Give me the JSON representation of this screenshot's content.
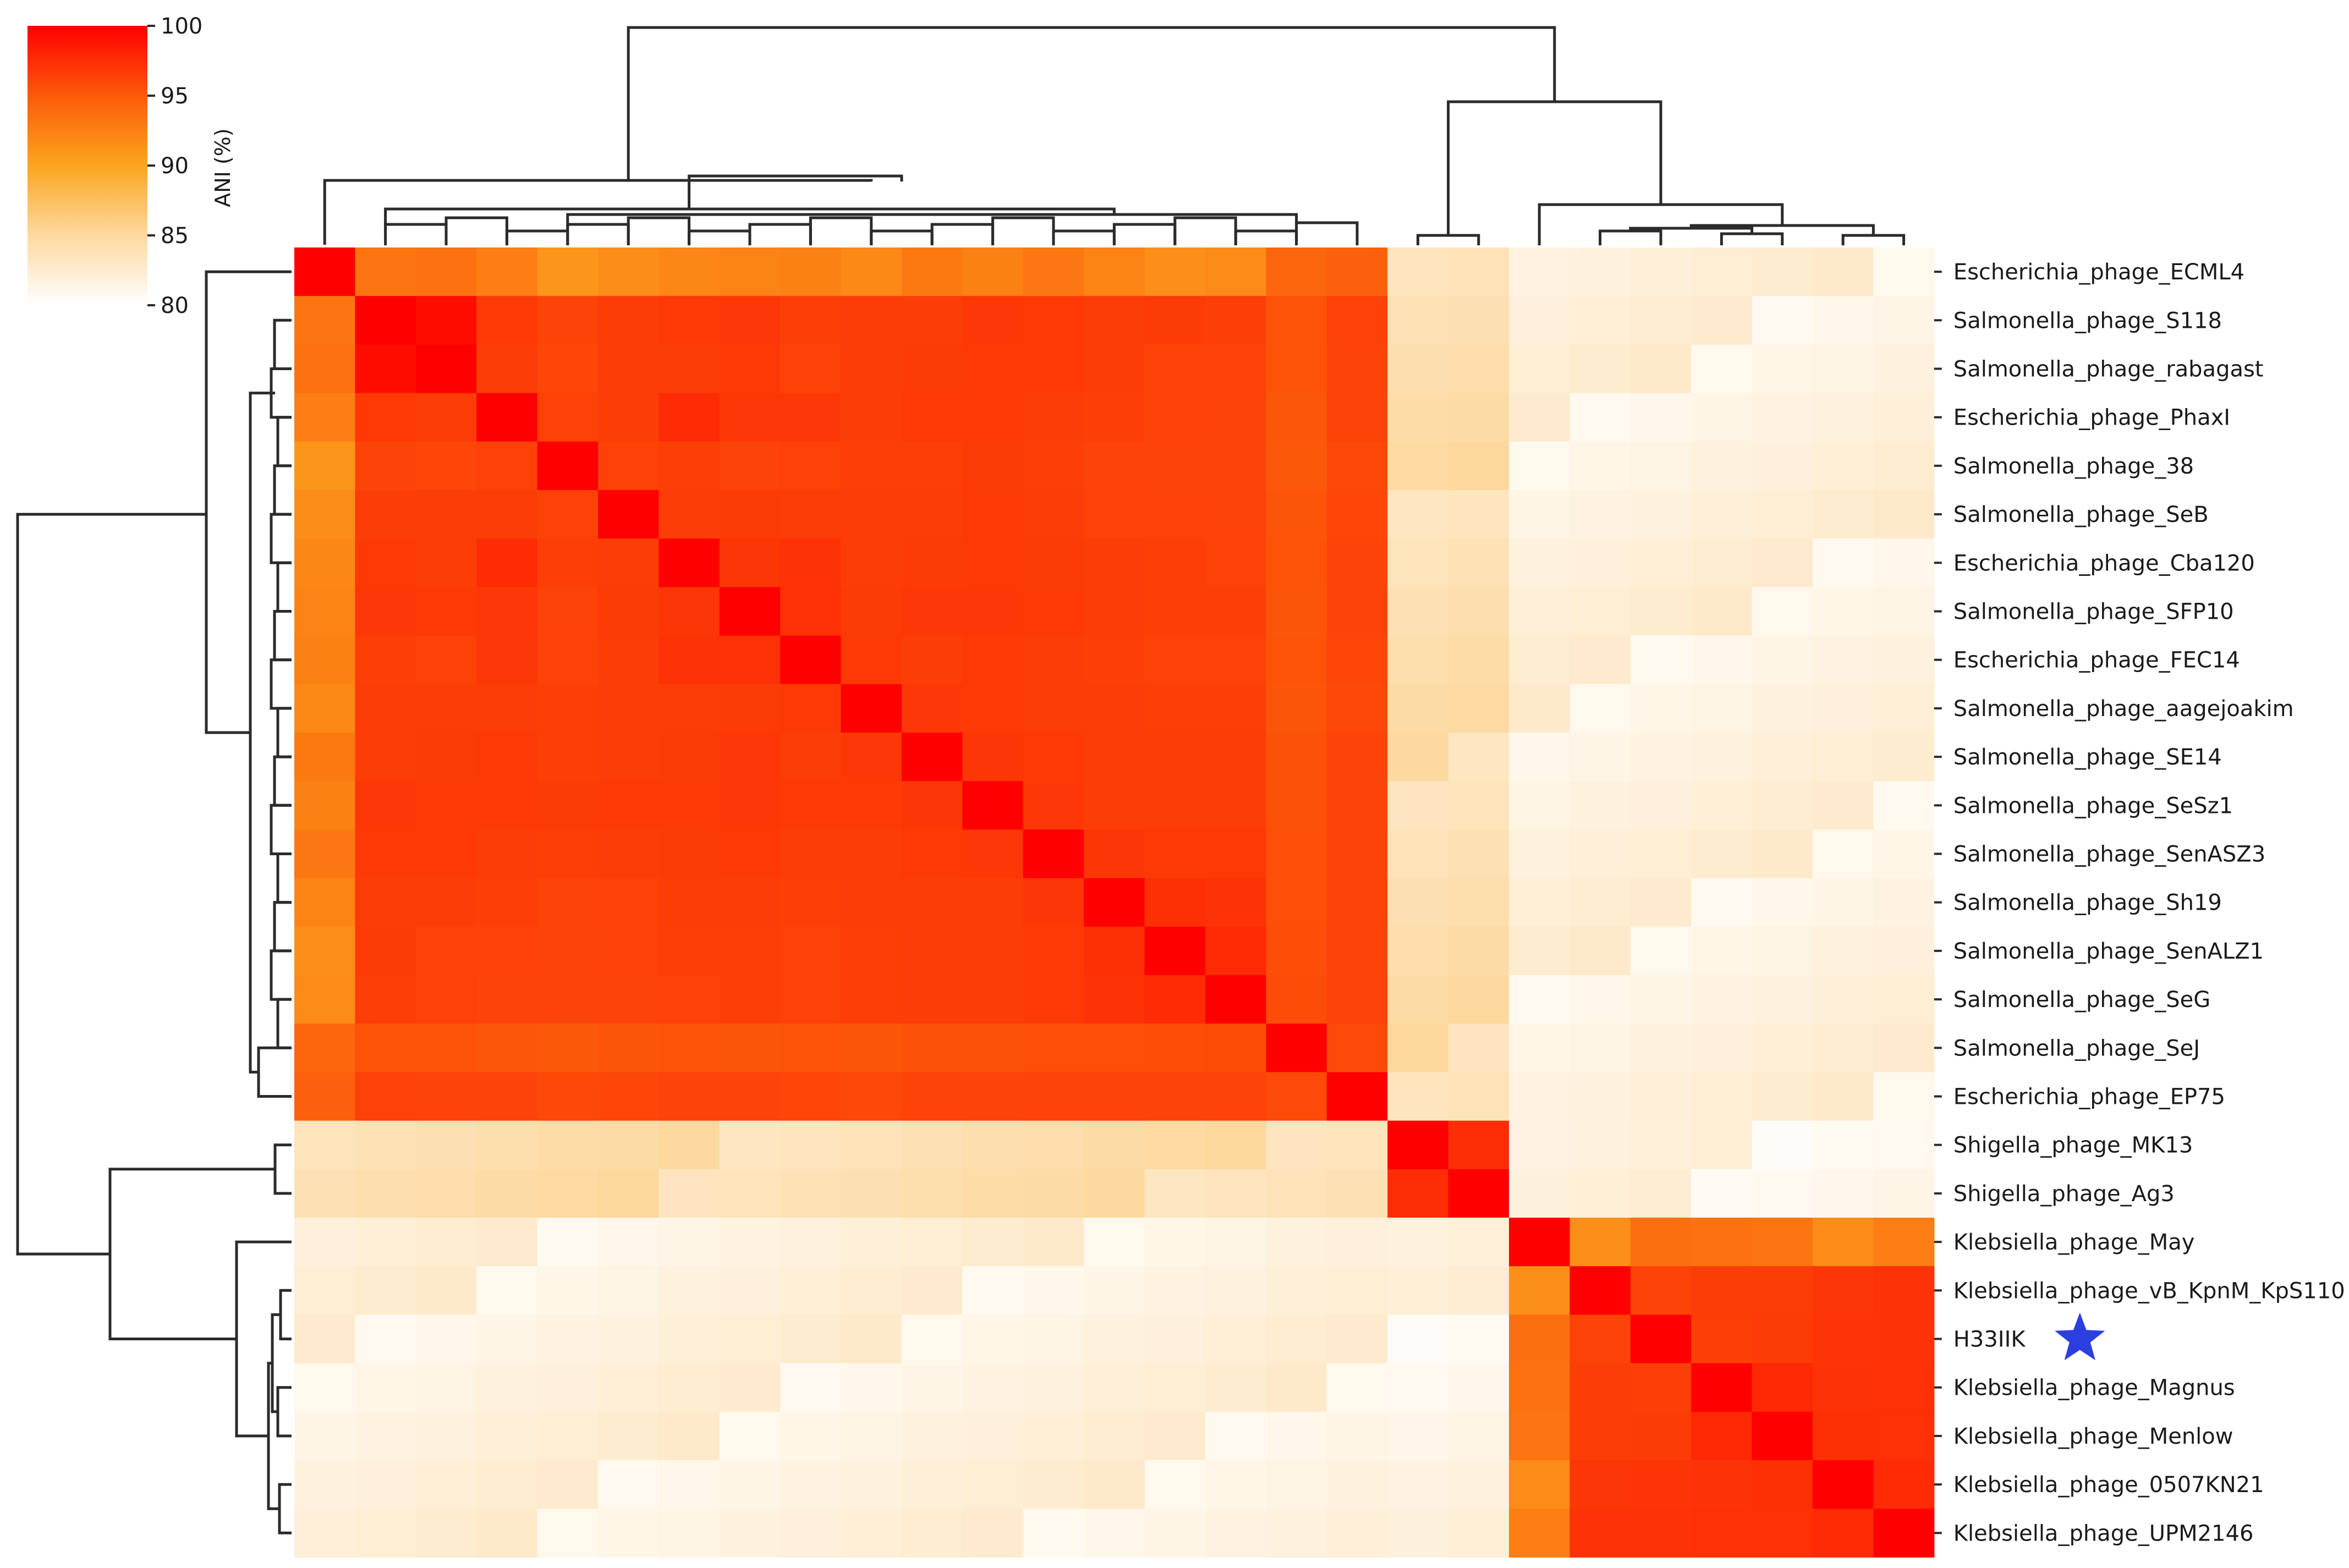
{
  "chart_data": {
    "type": "heatmap",
    "metric": "ANI (%)",
    "colorbar": {
      "label": "ANI (%)",
      "ticks": [
        100,
        95,
        90,
        85,
        80
      ],
      "range": [
        80,
        100
      ],
      "colors": [
        "#ffffff",
        "#fdd9a0",
        "#fca51e",
        "#fc5a0a",
        "#ff0000"
      ]
    },
    "rows": [
      "Escherichia_phage_ECML4",
      "Salmonella_phage_S118",
      "Salmonella_phage_rabagast",
      "Escherichia_phage_PhaxI",
      "Salmonella_phage_38",
      "Salmonella_phage_SeB",
      "Escherichia_phage_Cba120",
      "Salmonella_phage_SFP10",
      "Escherichia_phage_FEC14",
      "Salmonella_phage_aagejoakim",
      "Salmonella_phage_SE14",
      "Salmonella_phage_SeSz1",
      "Salmonella_phage_SenASZ3",
      "Salmonella_phage_Sh19",
      "Salmonella_phage_SenALZ1",
      "Salmonella_phage_SeG",
      "Salmonella_phage_SeJ",
      "Escherichia_phage_EP75",
      "Shigella_phage_MK13",
      "Shigella_phage_Ag3",
      "Klebsiella_phage_May",
      "Klebsiella_phage_vB_KpnM_KpS110",
      "H33IIK",
      "Klebsiella_phage_Magnus",
      "Klebsiella_phage_Menlow",
      "Klebsiella_phage_0507KN21",
      "Klebsiella_phage_UPM2146"
    ],
    "highlight": {
      "row": "H33IIK",
      "marker": "star-icon",
      "color": "#2b3ee0"
    },
    "groups": [
      {
        "start": 0,
        "end": 17
      },
      {
        "start": 18,
        "end": 19
      },
      {
        "start": 20,
        "end": 26
      }
    ],
    "within_group_ani": [
      [
        100,
        93.2,
        93.4,
        92.6,
        91.0,
        91.6,
        92.0,
        92.3,
        92.4,
        91.9,
        92.9,
        92.4,
        93.1,
        92.2,
        91.5,
        91.8,
        94.2,
        94.6
      ],
      [
        93.2,
        100,
        99.3,
        96.8,
        96.2,
        96.6,
        96.8,
        96.9,
        96.5,
        96.6,
        96.6,
        96.9,
        96.8,
        96.6,
        96.7,
        96.5,
        95.4,
        96.4
      ],
      [
        93.4,
        99.3,
        100,
        96.6,
        96.1,
        96.6,
        96.6,
        96.8,
        96.4,
        96.6,
        96.7,
        96.8,
        96.8,
        96.6,
        96.4,
        96.4,
        95.4,
        96.3
      ],
      [
        92.6,
        96.8,
        96.6,
        100,
        96.4,
        96.6,
        97.6,
        96.9,
        96.9,
        96.6,
        96.8,
        96.8,
        96.6,
        96.5,
        96.4,
        96.3,
        95.2,
        96.2
      ],
      [
        91.0,
        96.2,
        96.1,
        96.4,
        100,
        96.4,
        96.5,
        96.3,
        96.4,
        96.5,
        96.5,
        96.7,
        96.5,
        96.3,
        96.2,
        96.2,
        95.1,
        96.0
      ],
      [
        91.6,
        96.6,
        96.6,
        96.6,
        96.4,
        100,
        96.6,
        96.7,
        96.6,
        96.6,
        96.6,
        96.8,
        96.6,
        96.4,
        96.4,
        96.3,
        95.3,
        96.1
      ],
      [
        92.0,
        96.8,
        96.6,
        97.6,
        96.5,
        96.6,
        100,
        97.0,
        97.2,
        96.6,
        96.7,
        96.8,
        96.7,
        96.6,
        96.5,
        96.4,
        95.4,
        96.2
      ],
      [
        92.3,
        96.9,
        96.8,
        96.9,
        96.3,
        96.7,
        97.0,
        100,
        97.3,
        96.7,
        96.9,
        96.9,
        96.8,
        96.6,
        96.5,
        96.5,
        95.3,
        96.2
      ],
      [
        92.4,
        96.5,
        96.4,
        96.9,
        96.4,
        96.6,
        97.2,
        97.3,
        100,
        96.8,
        96.6,
        96.8,
        96.6,
        96.5,
        96.4,
        96.4,
        95.4,
        96.1
      ],
      [
        91.9,
        96.6,
        96.6,
        96.6,
        96.5,
        96.6,
        96.6,
        96.7,
        96.8,
        100,
        96.9,
        96.8,
        96.6,
        96.6,
        96.5,
        96.5,
        95.3,
        96.0
      ],
      [
        92.9,
        96.6,
        96.7,
        96.8,
        96.5,
        96.6,
        96.7,
        96.9,
        96.6,
        96.9,
        100,
        97.0,
        96.8,
        96.6,
        96.6,
        96.6,
        95.5,
        96.3
      ],
      [
        92.4,
        96.9,
        96.8,
        96.8,
        96.7,
        96.8,
        96.8,
        96.9,
        96.8,
        96.8,
        97.0,
        100,
        96.9,
        96.6,
        96.6,
        96.6,
        95.5,
        96.2
      ],
      [
        93.1,
        96.8,
        96.8,
        96.6,
        96.5,
        96.6,
        96.7,
        96.8,
        96.6,
        96.6,
        96.8,
        96.9,
        100,
        97.0,
        96.8,
        96.8,
        95.6,
        96.3
      ],
      [
        92.2,
        96.6,
        96.6,
        96.5,
        96.3,
        96.4,
        96.6,
        96.6,
        96.5,
        96.6,
        96.6,
        96.6,
        97.0,
        100,
        97.4,
        97.2,
        95.6,
        96.3
      ],
      [
        91.5,
        96.7,
        96.4,
        96.4,
        96.2,
        96.4,
        96.5,
        96.5,
        96.4,
        96.5,
        96.6,
        96.6,
        96.8,
        97.4,
        100,
        97.6,
        95.7,
        96.2
      ],
      [
        91.8,
        96.5,
        96.4,
        96.3,
        96.2,
        96.3,
        96.4,
        96.5,
        96.4,
        96.5,
        96.6,
        96.6,
        96.8,
        97.2,
        97.6,
        100,
        95.8,
        96.3
      ],
      [
        94.2,
        95.4,
        95.4,
        95.2,
        95.1,
        95.3,
        95.4,
        95.3,
        95.4,
        95.3,
        95.5,
        95.5,
        95.6,
        95.6,
        95.7,
        95.8,
        100,
        95.9
      ],
      [
        94.6,
        96.4,
        96.3,
        96.2,
        96.0,
        96.1,
        96.2,
        96.2,
        96.1,
        96.0,
        96.3,
        96.2,
        96.3,
        96.3,
        96.2,
        96.3,
        95.9,
        100
      ]
    ],
    "shigella_block": [
      [
        100,
        97.5
      ],
      [
        97.5,
        100
      ]
    ],
    "klebsiella_block": [
      [
        100,
        91.5,
        93.6,
        93.4,
        93.2,
        91.7,
        92.6
      ],
      [
        91.5,
        100,
        96.3,
        96.6,
        96.6,
        97.0,
        97.2
      ],
      [
        93.6,
        96.3,
        100,
        96.5,
        96.7,
        97.1,
        97.2
      ],
      [
        93.4,
        96.6,
        96.5,
        100,
        97.8,
        97.2,
        97.3
      ],
      [
        93.2,
        96.6,
        96.7,
        97.8,
        100,
        97.4,
        97.3
      ],
      [
        91.7,
        97.0,
        97.1,
        97.2,
        97.4,
        100,
        97.6
      ],
      [
        92.6,
        97.2,
        97.2,
        97.3,
        97.3,
        97.6,
        100
      ]
    ],
    "between_group_ani": {
      "salmonella_vs_shigella": 84.2,
      "salmonella_vs_klebsiella": 81.8,
      "shigella_vs_klebsiella": 81.4
    }
  }
}
